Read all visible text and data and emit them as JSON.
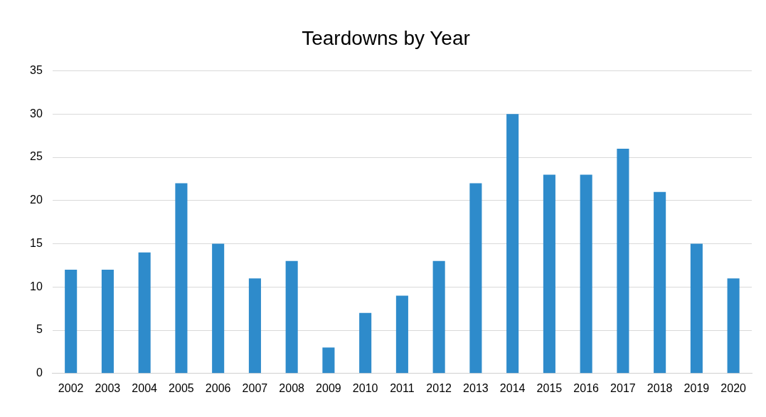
{
  "chart_data": {
    "type": "bar",
    "title": "Teardowns by Year",
    "categories": [
      "2002",
      "2003",
      "2004",
      "2005",
      "2006",
      "2007",
      "2008",
      "2009",
      "2010",
      "2011",
      "2012",
      "2013",
      "2014",
      "2015",
      "2016",
      "2017",
      "2018",
      "2019",
      "2020"
    ],
    "values": [
      12,
      12,
      14,
      22,
      15,
      11,
      13,
      3,
      7,
      9,
      13,
      22,
      30,
      23,
      23,
      26,
      21,
      15,
      11
    ],
    "color": "#2e8bcb",
    "ylim": [
      0,
      35
    ],
    "yticks": [
      0,
      5,
      10,
      15,
      20,
      25,
      30,
      35
    ],
    "grid": "y",
    "legend": false
  }
}
